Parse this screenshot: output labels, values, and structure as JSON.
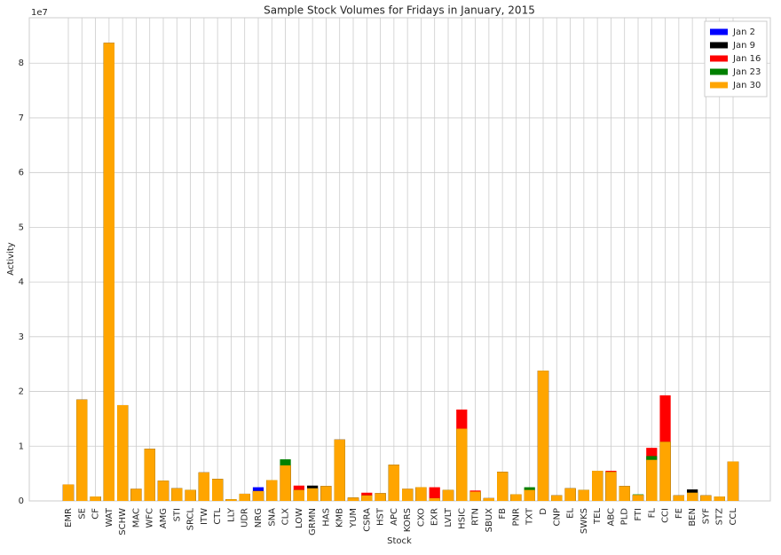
{
  "chart_data": {
    "type": "bar",
    "title": "Sample Stock Volumes for Fridays in January, 2015",
    "x_label": "Stock",
    "y_label": "Activity",
    "y_offset_label": "1e7",
    "categories": [
      "EMR",
      "SE",
      "CF",
      "WAT",
      "SCHW",
      "MAC",
      "WFC",
      "AMG",
      "STI",
      "SRCL",
      "ITW",
      "CTL",
      "LLY",
      "UDR",
      "NRG",
      "SNA",
      "CLX",
      "LOW",
      "GRMN",
      "HAS",
      "KMB",
      "YUM",
      "CSRA",
      "HST",
      "APC",
      "KORS",
      "CXO",
      "EXR",
      "LVLT",
      "HSIC",
      "RTN",
      "SBUX",
      "FB",
      "PNR",
      "TXT",
      "D",
      "CNP",
      "EL",
      "SWKS",
      "TEL",
      "ABC",
      "PLD",
      "FTI",
      "FL",
      "CCI",
      "FE",
      "BEN",
      "SYF",
      "STZ",
      "CCL"
    ],
    "series": [
      {
        "name": "Jan 2",
        "color": "#0000ff",
        "values": [
          0.3,
          1.85,
          0.08,
          8.37,
          1.75,
          0.22,
          0.95,
          0.37,
          0.23,
          0.2,
          0.52,
          0.4,
          0.03,
          0.13,
          0.25,
          0.38,
          0.65,
          0.2,
          0.23,
          0.27,
          1.12,
          0.06,
          0.1,
          0.14,
          0.66,
          0.22,
          0.25,
          0.05,
          0.2,
          1.32,
          0.17,
          0.05,
          0.53,
          0.12,
          0.2,
          2.38,
          0.1,
          0.23,
          0.2,
          0.55,
          0.53,
          0.27,
          0.11,
          0.75,
          1.08,
          0.1,
          0.15,
          0.1,
          0.08,
          0.72
        ]
      },
      {
        "name": "Jan 9",
        "color": "#000000",
        "values": [
          0.3,
          1.85,
          0.08,
          8.37,
          1.75,
          0.22,
          0.95,
          0.37,
          0.23,
          0.2,
          0.52,
          0.4,
          0.03,
          0.13,
          0.18,
          0.38,
          0.65,
          0.2,
          0.28,
          0.27,
          1.12,
          0.06,
          0.1,
          0.14,
          0.66,
          0.22,
          0.25,
          0.05,
          0.2,
          1.32,
          0.17,
          0.05,
          0.53,
          0.12,
          0.2,
          2.38,
          0.1,
          0.23,
          0.2,
          0.55,
          0.53,
          0.27,
          0.11,
          0.75,
          1.08,
          0.1,
          0.21,
          0.1,
          0.08,
          0.72
        ]
      },
      {
        "name": "Jan 16",
        "color": "#ff0000",
        "values": [
          0.3,
          1.85,
          0.08,
          8.37,
          1.75,
          0.22,
          0.95,
          0.37,
          0.23,
          0.2,
          0.52,
          0.4,
          0.03,
          0.13,
          0.18,
          0.38,
          0.65,
          0.28,
          0.23,
          0.27,
          1.12,
          0.06,
          0.15,
          0.14,
          0.66,
          0.22,
          0.25,
          0.25,
          0.2,
          1.67,
          0.19,
          0.05,
          0.53,
          0.12,
          0.2,
          2.38,
          0.1,
          0.23,
          0.2,
          0.55,
          0.55,
          0.27,
          0.11,
          0.97,
          1.93,
          0.1,
          0.15,
          0.1,
          0.08,
          0.72
        ]
      },
      {
        "name": "Jan 23",
        "color": "#008000",
        "values": [
          0.3,
          1.85,
          0.08,
          8.37,
          1.75,
          0.22,
          0.95,
          0.37,
          0.23,
          0.2,
          0.52,
          0.4,
          0.03,
          0.13,
          0.18,
          0.38,
          0.76,
          0.2,
          0.23,
          0.27,
          1.12,
          0.06,
          0.1,
          0.14,
          0.66,
          0.22,
          0.25,
          0.05,
          0.2,
          1.32,
          0.17,
          0.05,
          0.53,
          0.12,
          0.25,
          2.38,
          0.1,
          0.23,
          0.2,
          0.55,
          0.53,
          0.27,
          0.12,
          0.82,
          1.08,
          0.1,
          0.15,
          0.1,
          0.08,
          0.72
        ]
      },
      {
        "name": "Jan 30",
        "color": "#ffa500",
        "values": [
          0.3,
          1.85,
          0.08,
          8.37,
          1.75,
          0.22,
          0.95,
          0.37,
          0.23,
          0.2,
          0.52,
          0.4,
          0.03,
          0.13,
          0.18,
          0.38,
          0.65,
          0.2,
          0.23,
          0.27,
          1.12,
          0.06,
          0.1,
          0.14,
          0.66,
          0.22,
          0.25,
          0.05,
          0.2,
          1.32,
          0.17,
          0.05,
          0.53,
          0.12,
          0.2,
          2.38,
          0.1,
          0.23,
          0.2,
          0.55,
          0.53,
          0.27,
          0.11,
          0.75,
          1.08,
          0.1,
          0.15,
          0.1,
          0.08,
          0.72
        ]
      }
    ],
    "ylim": [
      0,
      8.83
    ],
    "yticks": [
      0,
      1,
      2,
      3,
      4,
      5,
      6,
      7,
      8
    ],
    "grid": true,
    "legend": "upper right"
  }
}
